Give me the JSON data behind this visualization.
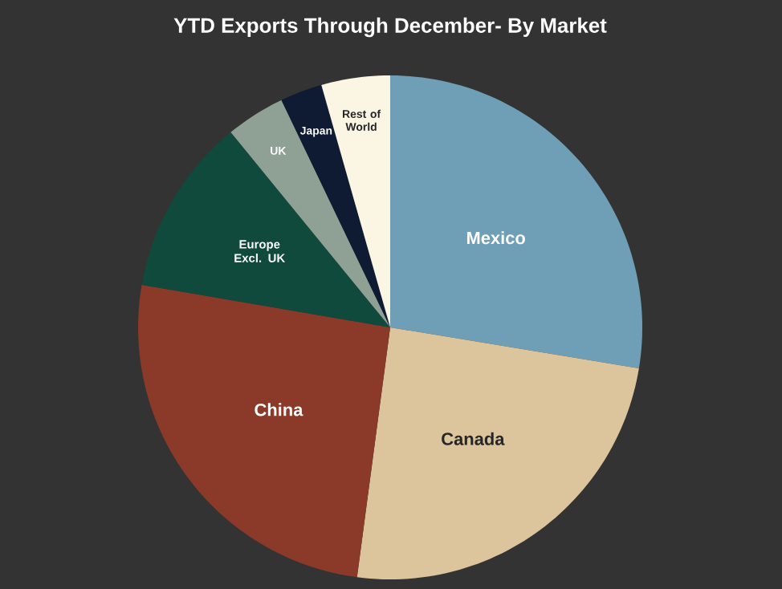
{
  "chart_data": {
    "type": "pie",
    "title": "YTD Exports Through December- By Market",
    "categories": [
      "Mexico",
      "Canada",
      "China",
      "Europe Excl. UK",
      "UK",
      "Japan",
      "Rest of World"
    ],
    "values": [
      27.6,
      24.5,
      25.6,
      11.4,
      3.8,
      2.7,
      4.4
    ],
    "colors": [
      "#6f9fb6",
      "#dcc59c",
      "#8b3a2a",
      "#0f4a3d",
      "#8fa095",
      "#0e1b33",
      "#fbf5e3"
    ]
  }
}
